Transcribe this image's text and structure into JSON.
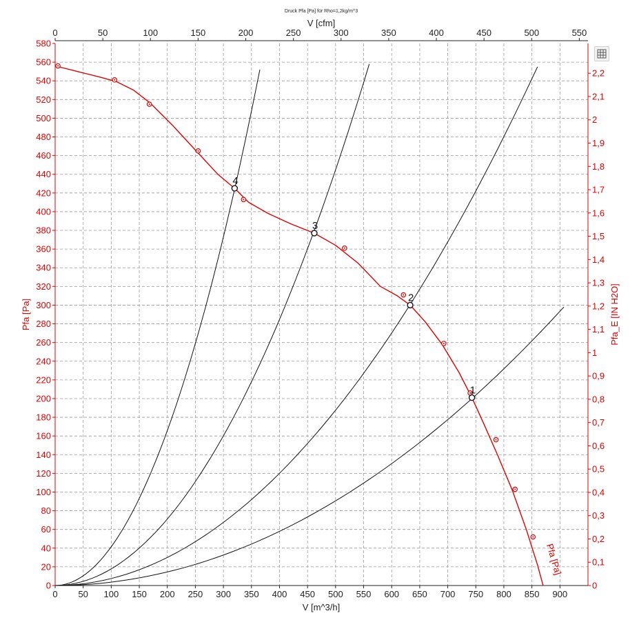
{
  "chart_data": {
    "type": "line",
    "title": "Druck Pfa [Pa] für Rho=1,2kg/m^3",
    "xlabel": "V [m^3/h]",
    "x2label": "V [cfm]",
    "ylabel": "Pfa [Pa]",
    "y2label": "Pfa_E [IN H2O]",
    "xlim": [
      0,
      950
    ],
    "x2lim": [
      0,
      559.1
    ],
    "ylim": [
      0,
      580
    ],
    "y2lim": [
      0,
      2.328
    ],
    "x_ticks": [
      "0",
      "50",
      "100",
      "150",
      "200",
      "250",
      "300",
      "350",
      "400",
      "450",
      "500",
      "550",
      "600",
      "650",
      "700",
      "750",
      "800",
      "850",
      "900"
    ],
    "x2_ticks": [
      "0",
      "50",
      "100",
      "150",
      "200",
      "250",
      "300",
      "350",
      "400",
      "450",
      "500",
      "550"
    ],
    "y_ticks": [
      "0",
      "20",
      "40",
      "60",
      "80",
      "100",
      "120",
      "140",
      "160",
      "180",
      "200",
      "220",
      "240",
      "260",
      "280",
      "300",
      "320",
      "340",
      "360",
      "380",
      "400",
      "420",
      "440",
      "460",
      "480",
      "500",
      "520",
      "540",
      "560",
      "580"
    ],
    "y2_ticks": [
      "0",
      "0,1",
      "0,2",
      "0,3",
      "0,4",
      "0,5",
      "0,6",
      "0,7",
      "0,8",
      "0,9",
      "1",
      "1,1",
      "1,2",
      "1,3",
      "1,4",
      "1,5",
      "1,6",
      "1,7",
      "1,8",
      "1,9",
      "2",
      "2,1",
      "2,2"
    ],
    "grid": true,
    "curve_label": "Pfa [Pa]",
    "fan_curve": {
      "color": "#e00000",
      "x": [
        0,
        40,
        80,
        110,
        140,
        170,
        210,
        250,
        290,
        320,
        345,
        380,
        420,
        462,
        500,
        540,
        580,
        610,
        633,
        660,
        690,
        720,
        743,
        765,
        790,
        815,
        840,
        860,
        870
      ],
      "y": [
        556,
        550,
        544,
        539,
        530,
        516,
        492,
        466,
        440,
        425,
        410,
        398,
        387,
        377,
        364,
        345,
        320,
        310,
        300,
        282,
        258,
        228,
        201,
        172,
        138,
        102,
        60,
        22,
        0
      ]
    },
    "markers": {
      "color": "#e00000",
      "x": [
        5,
        106,
        168,
        255,
        336,
        516,
        621,
        693,
        740,
        786,
        820,
        852
      ],
      "y": [
        556,
        541,
        515,
        465,
        413,
        361,
        311,
        259,
        206,
        156,
        103,
        52
      ]
    },
    "system_curves": [
      {
        "color": "#111111",
        "x_end": 907,
        "y_end": 298
      },
      {
        "color": "#111111",
        "x_end": 860,
        "y_end": 555
      },
      {
        "color": "#111111",
        "x_end": 560,
        "y_end": 558
      },
      {
        "color": "#111111",
        "x_end": 365,
        "y_end": 552
      }
    ],
    "operating_points": [
      {
        "label": "1",
        "x": 743,
        "y": 201
      },
      {
        "label": "2",
        "x": 633,
        "y": 300
      },
      {
        "label": "3",
        "x": 462,
        "y": 377
      },
      {
        "label": "4",
        "x": 320,
        "y": 425
      }
    ]
  },
  "toolbar": {
    "export_icon": "table-export-icon"
  }
}
